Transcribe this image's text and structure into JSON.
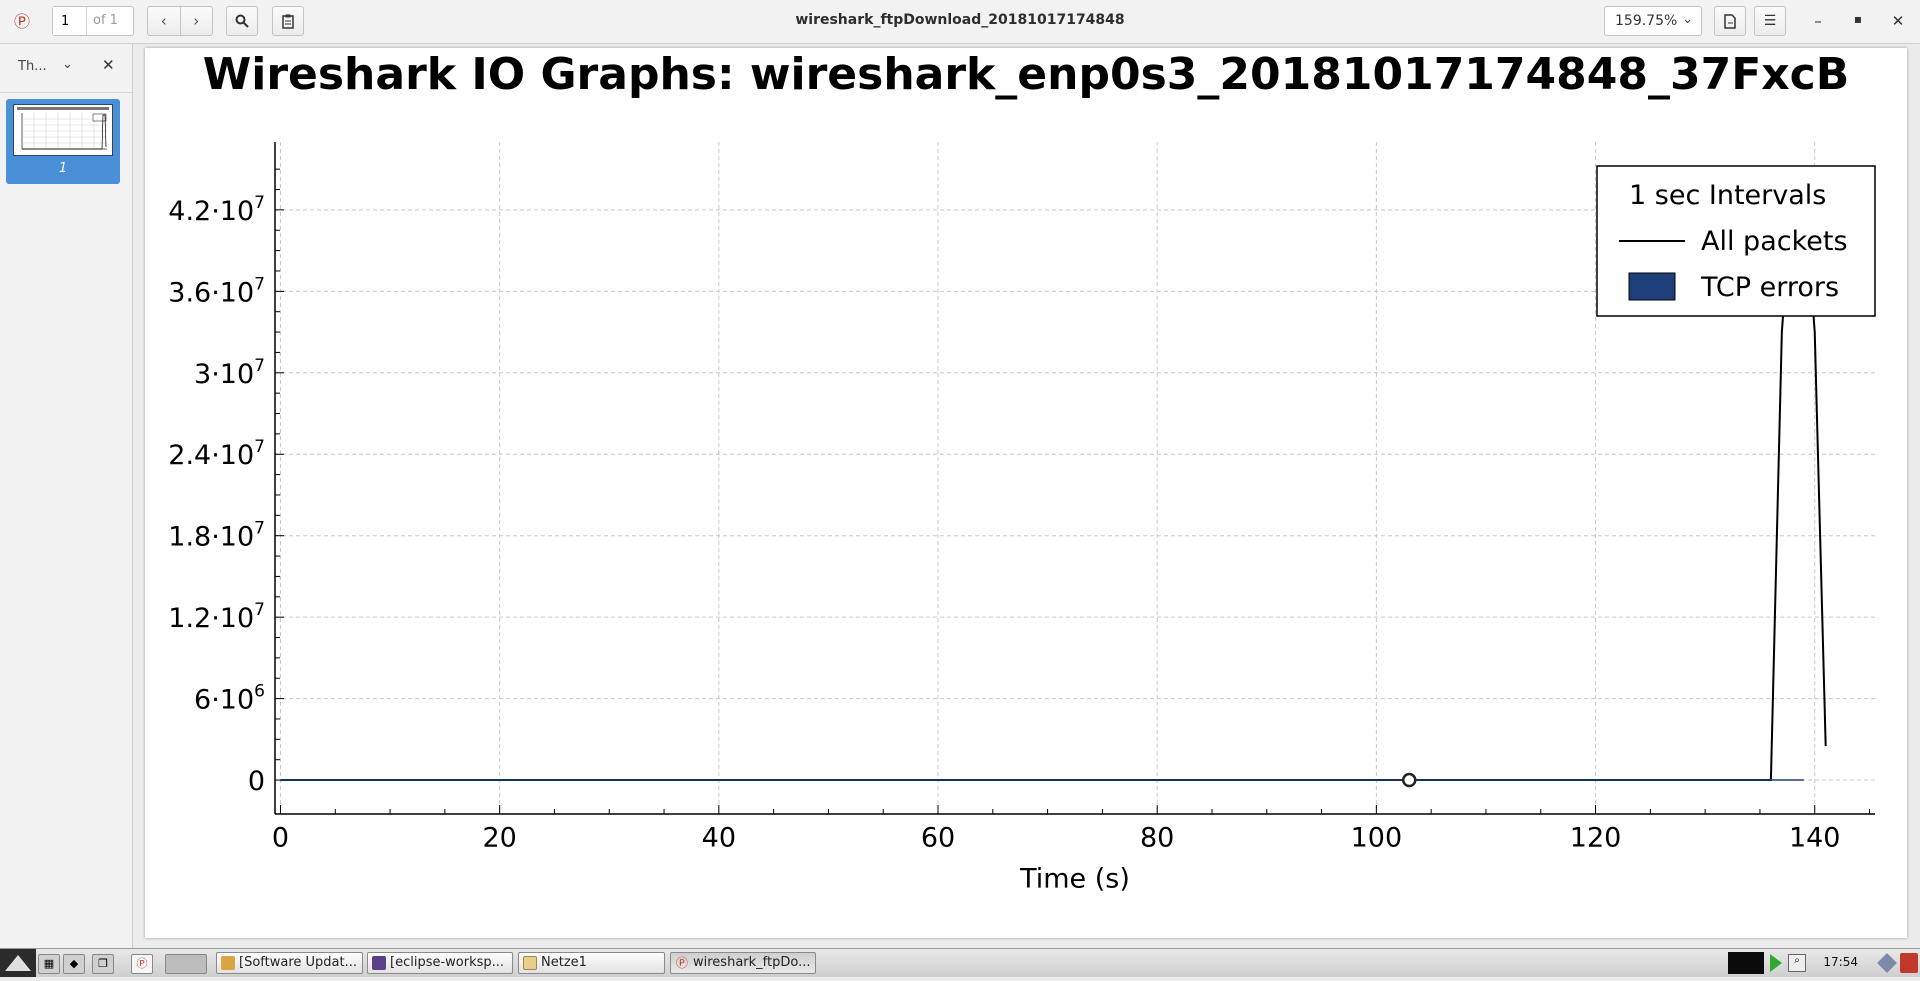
{
  "window": {
    "title": "wireshark_ftpDownload_20181017174848",
    "page_input": "1",
    "page_of": "of 1",
    "zoom": "159.75%"
  },
  "sidebar": {
    "label": "Th...",
    "thumb_page": "1"
  },
  "chart_data": {
    "type": "line",
    "title": "Wireshark IO Graphs: wireshark_enp0s3_20181017174848_37FxcB",
    "xlabel": "Time (s)",
    "ylabel": "",
    "xlim": [
      -0.5,
      145.5
    ],
    "ylim": [
      -2500000,
      47000000
    ],
    "xticks": [
      0,
      20,
      40,
      60,
      80,
      100,
      120,
      140
    ],
    "xtick_labels": [
      "0",
      "20",
      "40",
      "60",
      "80",
      "100",
      "120",
      "140"
    ],
    "yticks": [
      0,
      6000000,
      12000000,
      18000000,
      24000000,
      30000000,
      36000000,
      42000000
    ],
    "ytick_labels": [
      {
        "mant": "0",
        "exp": ""
      },
      {
        "mant": "6·10",
        "exp": "6"
      },
      {
        "mant": "1.2·10",
        "exp": "7"
      },
      {
        "mant": "1.8·10",
        "exp": "7"
      },
      {
        "mant": "2.4·10",
        "exp": "7"
      },
      {
        "mant": "3·10",
        "exp": "7"
      },
      {
        "mant": "3.6·10",
        "exp": "7"
      },
      {
        "mant": "4.2·10",
        "exp": "7"
      }
    ],
    "grid": true,
    "legend": {
      "position": "top-right",
      "title": "1 sec Intervals",
      "entries": [
        "All packets",
        "TCP errors"
      ]
    },
    "series": [
      {
        "name": "All packets",
        "color": "#000000",
        "x": [
          0,
          135,
          136,
          137,
          138,
          139,
          140,
          141
        ],
        "y": [
          0,
          0,
          0,
          33000000,
          44000000,
          43500000,
          33000000,
          2500000
        ]
      },
      {
        "name": "TCP errors",
        "color": "#1f3f7a",
        "x": [
          0,
          139
        ],
        "y": [
          0,
          0
        ]
      }
    ],
    "marker": {
      "x": 103,
      "y": 0
    }
  },
  "taskbar": {
    "tasks": [
      "[Software Updat...",
      "[eclipse-worksp...",
      "Netze1",
      "wireshark_ftpDo..."
    ],
    "clock": "17:54"
  },
  "colors": {
    "accent": "#4a90d9",
    "tcp_errors": "#1f3f7a"
  }
}
